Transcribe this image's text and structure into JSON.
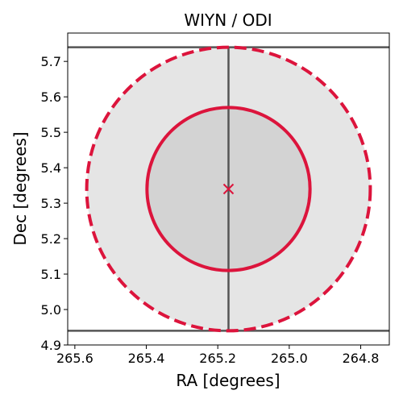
{
  "chart_data": {
    "type": "scatter",
    "title": "WIYN / ODI",
    "xlabel": "RA [degrees]",
    "ylabel": "Dec [degrees]",
    "xlim": [
      265.62,
      264.72
    ],
    "ylim": [
      4.9,
      5.78
    ],
    "x_inverted": true,
    "grid": false,
    "xticks": [
      {
        "value": 265.6,
        "label": "265.6"
      },
      {
        "value": 265.4,
        "label": "265.4"
      },
      {
        "value": 265.2,
        "label": "265.2"
      },
      {
        "value": 265.0,
        "label": "265.0"
      },
      {
        "value": 264.8,
        "label": "264.8"
      }
    ],
    "yticks": [
      {
        "value": 4.9,
        "label": "4.9"
      },
      {
        "value": 5.0,
        "label": "5.0"
      },
      {
        "value": 5.1,
        "label": "5.1"
      },
      {
        "value": 5.2,
        "label": "5.2"
      },
      {
        "value": 5.3,
        "label": "5.3"
      },
      {
        "value": 5.4,
        "label": "5.4"
      },
      {
        "value": 5.5,
        "label": "5.5"
      },
      {
        "value": 5.6,
        "label": "5.6"
      },
      {
        "value": 5.7,
        "label": "5.7"
      }
    ],
    "center": {
      "ra": 265.17,
      "dec": 5.34,
      "marker": "x",
      "color": "#dc143c"
    },
    "outer_circle": {
      "radius_deg": 0.4,
      "fill": "#e5e5e5",
      "edge": "#dc143c",
      "linestyle": "dashed"
    },
    "inner_circle": {
      "radius_deg": 0.23,
      "fill": "#d3d3d3",
      "edge": "#dc143c",
      "linestyle": "solid"
    },
    "lines": [
      {
        "orientation": "horizontal",
        "value": 5.74,
        "color": "#555555"
      },
      {
        "orientation": "horizontal",
        "value": 4.94,
        "color": "#555555"
      },
      {
        "orientation": "vertical",
        "value": 265.17,
        "from": 4.94,
        "to": 5.74,
        "color": "#555555"
      }
    ]
  }
}
